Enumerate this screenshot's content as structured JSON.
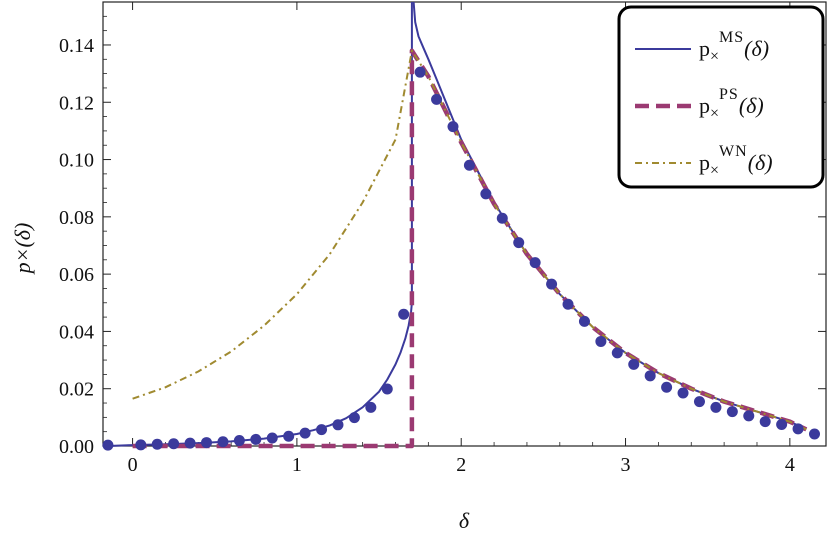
{
  "chart_data": {
    "type": "line",
    "title": "",
    "xlabel": "δ",
    "ylabel": "p×(δ)",
    "xlim": [
      -0.18,
      4.22
    ],
    "ylim": [
      0,
      0.155
    ],
    "x_ticks": [
      0,
      1,
      2,
      3,
      4
    ],
    "y_ticks": [
      0.0,
      0.02,
      0.04,
      0.06,
      0.08,
      0.1,
      0.12,
      0.14
    ],
    "x_tick_labels": [
      "0",
      "1",
      "2",
      "3",
      "4"
    ],
    "y_tick_labels": [
      "0.00",
      "0.02",
      "0.04",
      "0.06",
      "0.08",
      "0.10",
      "0.12",
      "0.14"
    ],
    "legend_position": "top-right",
    "series": [
      {
        "name": "MS",
        "legend_label": "p×^MS(δ)",
        "legend_main": "p",
        "legend_sub": "×",
        "legend_sup": "MS",
        "legend_arg": "(δ)",
        "style": "solid",
        "color": "#3b3a9c",
        "x": [
          -0.15,
          0.0,
          0.2,
          0.4,
          0.6,
          0.8,
          1.0,
          1.1,
          1.2,
          1.3,
          1.4,
          1.5,
          1.55,
          1.6,
          1.63,
          1.66,
          1.68,
          1.695,
          1.7,
          1.7
        ],
        "y": [
          0.0,
          0.0003,
          0.0006,
          0.001,
          0.0016,
          0.0026,
          0.0042,
          0.0055,
          0.0072,
          0.0097,
          0.0135,
          0.019,
          0.0232,
          0.0285,
          0.0325,
          0.0375,
          0.042,
          0.047,
          0.05,
          0.155
        ]
      },
      {
        "name": "MS_upper",
        "style": "solid",
        "color": "#3b3a9c",
        "x": [
          1.71,
          1.72,
          1.74,
          1.77,
          1.8,
          1.85,
          1.9,
          2.0,
          2.2,
          2.4,
          2.6,
          2.8,
          3.0,
          3.2,
          3.4,
          3.6,
          3.8,
          4.0,
          4.1
        ],
        "y": [
          0.155,
          0.148,
          0.143,
          0.139,
          0.135,
          0.128,
          0.121,
          0.107,
          0.085,
          0.067,
          0.053,
          0.0415,
          0.0325,
          0.0255,
          0.02,
          0.0155,
          0.012,
          0.0085,
          0.0058
        ]
      },
      {
        "name": "PS",
        "legend_label": "p×^PS(δ)",
        "legend_main": "p",
        "legend_sub": "×",
        "legend_sup": "PS",
        "legend_arg": "(δ)",
        "style": "dashed",
        "color": "#9b3a72",
        "x": [
          0.0,
          1.7,
          1.7,
          1.8,
          2.0,
          2.2,
          2.4,
          2.6,
          2.8,
          3.0,
          3.2,
          3.4,
          3.6,
          3.8,
          4.0,
          4.1
        ],
        "y": [
          0.0,
          0.0,
          0.138,
          0.129,
          0.106,
          0.0845,
          0.067,
          0.053,
          0.0415,
          0.0325,
          0.0255,
          0.02,
          0.0155,
          0.012,
          0.0085,
          0.0058
        ]
      },
      {
        "name": "WN",
        "legend_label": "p×^WN(δ)",
        "legend_main": "p",
        "legend_sub": "×",
        "legend_sup": "WN",
        "legend_arg": "(δ)",
        "style": "dotdash",
        "color": "#a08a30",
        "x": [
          0.0,
          0.2,
          0.4,
          0.6,
          0.8,
          1.0,
          1.2,
          1.4,
          1.6,
          1.7,
          1.8,
          2.0,
          2.2,
          2.4,
          2.6,
          2.8,
          3.0,
          3.2,
          3.4,
          3.6,
          3.8,
          4.0,
          4.1
        ],
        "y": [
          0.0165,
          0.0205,
          0.026,
          0.033,
          0.042,
          0.053,
          0.067,
          0.085,
          0.107,
          0.138,
          0.129,
          0.106,
          0.0845,
          0.067,
          0.053,
          0.0415,
          0.0325,
          0.0255,
          0.02,
          0.0155,
          0.012,
          0.0085,
          0.0058
        ]
      },
      {
        "name": "simulation",
        "style": "points",
        "color": "#3b3a9c",
        "x": [
          -0.15,
          0.05,
          0.15,
          0.25,
          0.35,
          0.45,
          0.55,
          0.65,
          0.75,
          0.85,
          0.95,
          1.05,
          1.15,
          1.25,
          1.35,
          1.45,
          1.55,
          1.65,
          1.75,
          1.85,
          1.95,
          2.05,
          2.15,
          2.25,
          2.35,
          2.45,
          2.55,
          2.65,
          2.75,
          2.85,
          2.95,
          3.05,
          3.15,
          3.25,
          3.35,
          3.45,
          3.55,
          3.65,
          3.75,
          3.85,
          3.95,
          4.05,
          4.15
        ],
        "y": [
          0.0003,
          0.0004,
          0.0006,
          0.0008,
          0.001,
          0.0012,
          0.0015,
          0.0019,
          0.0023,
          0.0028,
          0.0034,
          0.0045,
          0.0057,
          0.0074,
          0.0099,
          0.0135,
          0.0199,
          0.046,
          0.1305,
          0.121,
          0.1115,
          0.098,
          0.088,
          0.0795,
          0.071,
          0.064,
          0.0565,
          0.0495,
          0.0435,
          0.0365,
          0.0325,
          0.0285,
          0.0245,
          0.0205,
          0.0185,
          0.0155,
          0.0135,
          0.012,
          0.0105,
          0.0085,
          0.0075,
          0.006,
          0.0042
        ]
      }
    ]
  }
}
